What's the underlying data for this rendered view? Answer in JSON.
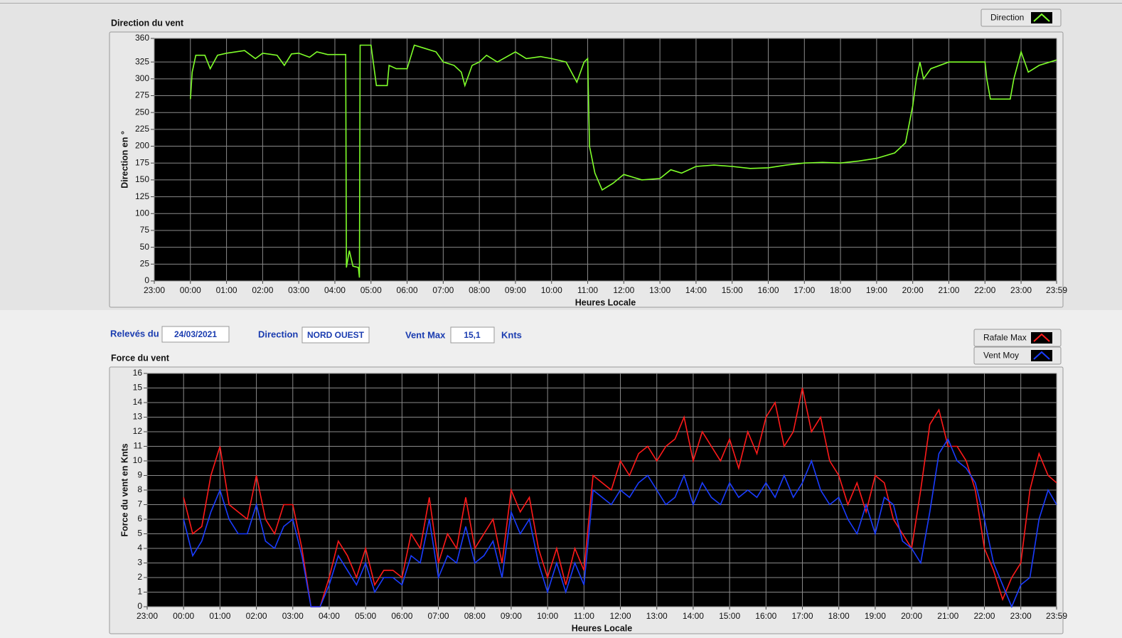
{
  "fields": {
    "date_label": "Relevés du",
    "date": "24/03/2021",
    "direction_label": "Direction",
    "direction": "NORD OUEST",
    "max_label": "Vent Max",
    "max": "15,1",
    "max_unit": "Knts"
  },
  "chart_data": [
    {
      "type": "line",
      "title": "Direction du vent",
      "x_label": "Heures Locale",
      "y_label": "Direction en °",
      "grid": true,
      "xlim": [
        0,
        24.983
      ],
      "xticks": [
        {
          "value": 0,
          "label": "23:00"
        },
        {
          "value": 1,
          "label": "00:00"
        },
        {
          "value": 2,
          "label": "01:00"
        },
        {
          "value": 3,
          "label": "02:00"
        },
        {
          "value": 4,
          "label": "03:00"
        },
        {
          "value": 5,
          "label": "04:00"
        },
        {
          "value": 6,
          "label": "05:00"
        },
        {
          "value": 7,
          "label": "06:00"
        },
        {
          "value": 8,
          "label": "07:00"
        },
        {
          "value": 9,
          "label": "08:00"
        },
        {
          "value": 10,
          "label": "09:00"
        },
        {
          "value": 11,
          "label": "10:00"
        },
        {
          "value": 12,
          "label": "11:00"
        },
        {
          "value": 13,
          "label": "12:00"
        },
        {
          "value": 14,
          "label": "13:00"
        },
        {
          "value": 15,
          "label": "14:00"
        },
        {
          "value": 16,
          "label": "15:00"
        },
        {
          "value": 17,
          "label": "16:00"
        },
        {
          "value": 18,
          "label": "17:00"
        },
        {
          "value": 19,
          "label": "18:00"
        },
        {
          "value": 20,
          "label": "19:00"
        },
        {
          "value": 21,
          "label": "20:00"
        },
        {
          "value": 22,
          "label": "21:00"
        },
        {
          "value": 23,
          "label": "22:00"
        },
        {
          "value": 24,
          "label": "23:00"
        },
        {
          "value": 24.983,
          "label": "23:59"
        }
      ],
      "ylim": [
        0,
        360
      ],
      "yticks": [
        0,
        25,
        50,
        75,
        100,
        125,
        150,
        175,
        200,
        225,
        250,
        275,
        300,
        325,
        360
      ],
      "x": [
        1,
        1.05,
        1.15,
        1.4,
        1.55,
        1.75,
        2,
        2.5,
        2.8,
        3,
        3.4,
        3.6,
        3.8,
        4,
        4.3,
        4.5,
        4.8,
        5.3,
        5.32,
        5.4,
        5.5,
        5.65,
        5.68,
        5.7,
        6,
        6.15,
        6.45,
        6.5,
        6.7,
        7,
        7.2,
        7.5,
        7.8,
        8,
        8.3,
        8.5,
        8.6,
        8.8,
        9,
        9.2,
        9.5,
        10,
        10.3,
        10.7,
        11,
        11.4,
        11.6,
        11.7,
        11.9,
        12,
        12.05,
        12.2,
        12.4,
        12.7,
        13,
        13.5,
        14,
        14.3,
        14.6,
        15,
        15.5,
        16,
        16.5,
        17,
        17.5,
        18,
        18.5,
        19,
        19.5,
        20,
        20.5,
        20.8,
        21,
        21.1,
        21.2,
        21.3,
        21.5,
        22,
        22.5,
        23,
        23.05,
        23.15,
        23.7,
        23.8,
        24,
        24.2,
        24.5,
        24.983
      ],
      "series": [
        {
          "name": "Direction",
          "color": "#7fff2a",
          "values": [
            270,
            310,
            335,
            335,
            315,
            335,
            338,
            342,
            330,
            338,
            335,
            320,
            337,
            338,
            332,
            340,
            336,
            336,
            20,
            45,
            22,
            20,
            5,
            350,
            350,
            290,
            290,
            320,
            315,
            315,
            350,
            345,
            340,
            325,
            320,
            310,
            290,
            320,
            325,
            335,
            325,
            340,
            330,
            333,
            330,
            325,
            305,
            295,
            325,
            330,
            200,
            160,
            135,
            145,
            158,
            150,
            152,
            165,
            160,
            170,
            172,
            170,
            167,
            168,
            172,
            175,
            176,
            175,
            178,
            182,
            190,
            205,
            260,
            300,
            325,
            300,
            315,
            325,
            325,
            325,
            300,
            270,
            270,
            300,
            340,
            310,
            320,
            328
          ]
        }
      ]
    },
    {
      "type": "line",
      "title": "Force du vent",
      "x_label": "Heures Locale",
      "y_label": "Force du vent en Knts",
      "grid": true,
      "xlim": [
        0,
        24.983
      ],
      "xticks": [
        {
          "value": 0,
          "label": "23:00"
        },
        {
          "value": 1,
          "label": "00:00"
        },
        {
          "value": 2,
          "label": "01:00"
        },
        {
          "value": 3,
          "label": "02:00"
        },
        {
          "value": 4,
          "label": "03:00"
        },
        {
          "value": 5,
          "label": "04:00"
        },
        {
          "value": 6,
          "label": "05:00"
        },
        {
          "value": 7,
          "label": "06:00"
        },
        {
          "value": 8,
          "label": "07:00"
        },
        {
          "value": 9,
          "label": "08:00"
        },
        {
          "value": 10,
          "label": "09:00"
        },
        {
          "value": 11,
          "label": "10:00"
        },
        {
          "value": 12,
          "label": "11:00"
        },
        {
          "value": 13,
          "label": "12:00"
        },
        {
          "value": 14,
          "label": "13:00"
        },
        {
          "value": 15,
          "label": "14:00"
        },
        {
          "value": 16,
          "label": "15:00"
        },
        {
          "value": 17,
          "label": "16:00"
        },
        {
          "value": 18,
          "label": "17:00"
        },
        {
          "value": 19,
          "label": "18:00"
        },
        {
          "value": 20,
          "label": "19:00"
        },
        {
          "value": 21,
          "label": "20:00"
        },
        {
          "value": 22,
          "label": "21:00"
        },
        {
          "value": 23,
          "label": "22:00"
        },
        {
          "value": 24,
          "label": "23:00"
        },
        {
          "value": 24.983,
          "label": "23:59"
        }
      ],
      "ylim": [
        0,
        16
      ],
      "yticks": [
        0,
        1,
        2,
        3,
        4,
        5,
        6,
        7,
        8,
        9,
        10,
        11,
        12,
        13,
        14,
        15,
        16
      ],
      "x": [
        1,
        1.25,
        1.5,
        1.75,
        2,
        2.25,
        2.5,
        2.75,
        3,
        3.25,
        3.5,
        3.75,
        4,
        4.25,
        4.5,
        4.75,
        5,
        5.25,
        5.5,
        5.75,
        6,
        6.25,
        6.5,
        6.75,
        7,
        7.25,
        7.5,
        7.75,
        8,
        8.25,
        8.5,
        8.75,
        9,
        9.25,
        9.5,
        9.75,
        10,
        10.25,
        10.5,
        10.75,
        11,
        11.25,
        11.5,
        11.75,
        12,
        12.25,
        12.5,
        12.75,
        13,
        13.25,
        13.5,
        13.75,
        14,
        14.25,
        14.5,
        14.75,
        15,
        15.25,
        15.5,
        15.75,
        16,
        16.25,
        16.5,
        16.75,
        17,
        17.25,
        17.5,
        17.75,
        18,
        18.25,
        18.5,
        18.75,
        19,
        19.25,
        19.5,
        19.75,
        20,
        20.25,
        20.5,
        20.75,
        21,
        21.25,
        21.5,
        21.75,
        22,
        22.25,
        22.5,
        22.75,
        23,
        23.25,
        23.5,
        23.75,
        24,
        24.25,
        24.5,
        24.75,
        24.983
      ],
      "series": [
        {
          "name": "Rafale Max",
          "color": "#ff1a1a",
          "values": [
            7.5,
            5,
            5.5,
            9,
            11,
            7,
            6.5,
            6,
            9,
            6,
            5,
            7,
            7,
            4,
            0,
            0,
            2,
            4.5,
            3.5,
            2,
            4,
            1.5,
            2.5,
            2.5,
            2,
            5,
            4,
            7.5,
            3,
            5,
            4,
            7.5,
            4,
            5,
            6,
            3,
            8,
            6.5,
            7.5,
            4,
            2,
            4,
            1.5,
            4,
            2.5,
            9,
            8.5,
            8,
            10,
            9,
            10.5,
            11,
            10,
            11,
            11.5,
            13,
            10,
            12,
            11,
            10,
            11.5,
            9.5,
            12,
            10.5,
            13,
            14,
            11,
            12,
            15,
            12,
            13,
            10,
            9,
            7,
            8.5,
            6.5,
            9,
            8.5,
            6,
            5,
            4,
            8,
            12.5,
            13.5,
            11,
            11,
            10,
            8,
            4,
            2.5,
            0.5,
            2,
            3,
            8,
            10.5,
            9,
            8.5
          ]
        },
        {
          "name": "Vent Moy",
          "color": "#1a3cff",
          "values": [
            6,
            3.5,
            4.5,
            6.5,
            8,
            6,
            5,
            5,
            7,
            4.5,
            4,
            5.5,
            6,
            3.5,
            0,
            0,
            1.5,
            3.5,
            2.5,
            1.5,
            3,
            1,
            2,
            2,
            1.5,
            3.5,
            3,
            6,
            2,
            3.5,
            3,
            5.5,
            3,
            3.5,
            4.5,
            2,
            6.5,
            5,
            6,
            3,
            1,
            3,
            1,
            3,
            1.5,
            8,
            7.5,
            7,
            8,
            7.5,
            8.5,
            9,
            8,
            7,
            7.5,
            9,
            7,
            8.5,
            7.5,
            7,
            8.5,
            7.5,
            8,
            7.5,
            8.5,
            7.5,
            9,
            7.5,
            8.5,
            10,
            8,
            7,
            7.5,
            6,
            5,
            7,
            5,
            7.5,
            7,
            4.5,
            4,
            3,
            6.5,
            10.5,
            11.5,
            10,
            9.5,
            8.5,
            6,
            3,
            1.5,
            0,
            1.5,
            2,
            6,
            8,
            7
          ]
        }
      ]
    }
  ]
}
